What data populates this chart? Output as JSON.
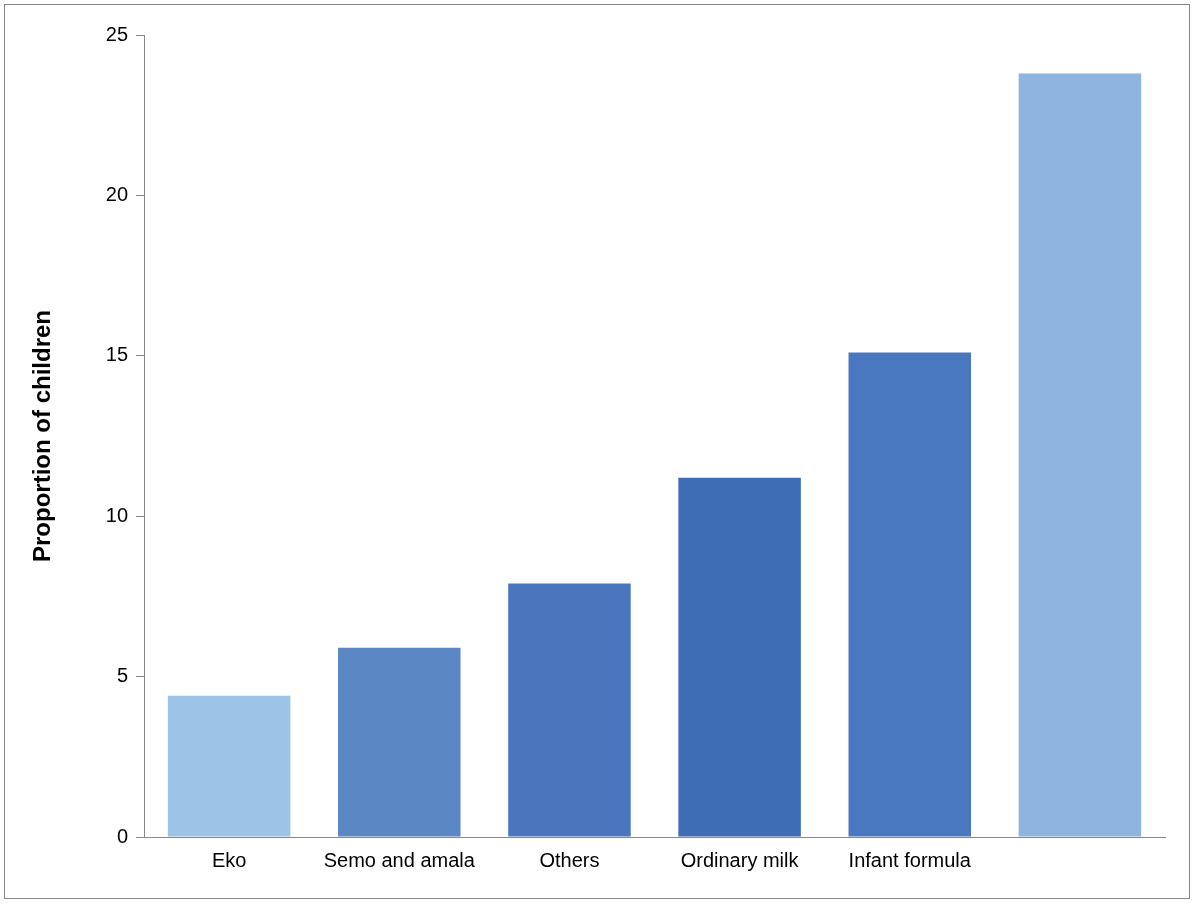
{
  "chart_data": {
    "type": "bar",
    "ylabel": "Proportion of children",
    "categories": [
      "Eko",
      "Semo and amala",
      "Others",
      "Ordinary milk",
      "Infant formula",
      null
    ],
    "values": [
      4.4,
      5.9,
      7.9,
      11.2,
      15.1,
      23.8
    ],
    "colors": [
      "#9dc3e6",
      "#5b87c5",
      "#4a76bd",
      "#3f6db5",
      "#4a78c0",
      "#8fb4e0"
    ],
    "ylim": [
      0,
      25
    ],
    "yticks": [
      0,
      5,
      10,
      15,
      20,
      25
    ],
    "grid": false,
    "legend": false
  }
}
